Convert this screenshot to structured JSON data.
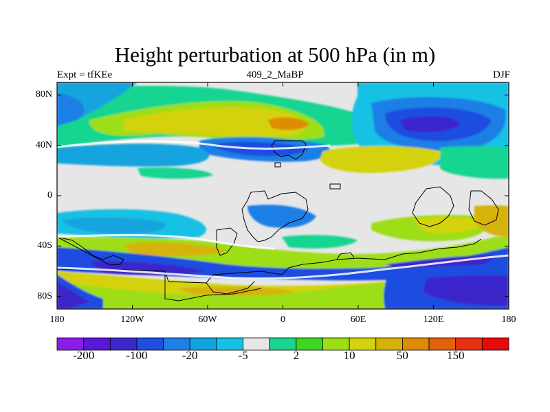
{
  "title": "Height perturbation at 500 hPa (in m)",
  "subtitle_left": "Expt = tfKEe",
  "subtitle_center": "409_2_MaBP",
  "subtitle_right": "DJF",
  "y_axis": {
    "ticks": [
      "80N",
      "40N",
      "0",
      "40S",
      "80S"
    ]
  },
  "x_axis": {
    "ticks": [
      "180",
      "120W",
      "60W",
      "0",
      "60E",
      "120E",
      "180"
    ]
  },
  "colorbar": {
    "labels": [
      "-200",
      "-100",
      "-20",
      "-5",
      "2",
      "10",
      "50",
      "150"
    ],
    "colors": [
      "#8a1ee8",
      "#5a18d8",
      "#3a28cc",
      "#1f4ee0",
      "#1f7fe6",
      "#12a4de",
      "#16c1e4",
      "#e6e6e6",
      "#18d590",
      "#3ed620",
      "#9ede14",
      "#d4d20e",
      "#d6b208",
      "#de8c06",
      "#e4600a",
      "#e63212",
      "#e60a0a"
    ]
  },
  "colors": {
    "neutral": "#e6e6e6",
    "coastline": "#000000"
  }
}
